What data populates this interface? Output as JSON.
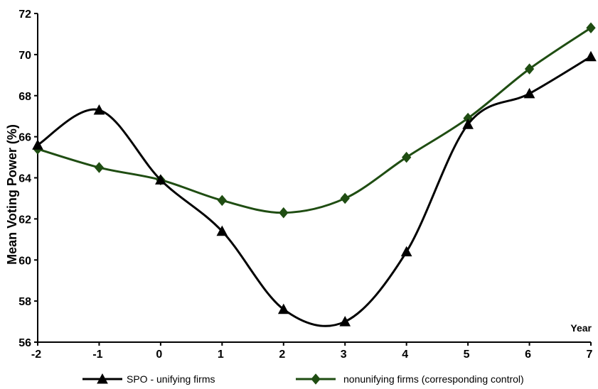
{
  "chart_data": {
    "type": "line",
    "title": "",
    "xlabel": "Year",
    "ylabel": "Mean Voting Power (%)",
    "x": [
      -2,
      -1,
      0,
      1,
      2,
      3,
      4,
      5,
      6,
      7
    ],
    "xlim": [
      -2,
      7
    ],
    "ylim": [
      56,
      72
    ],
    "xticks": [
      "-2",
      "-1",
      "0",
      "1",
      "2",
      "3",
      "4",
      "5",
      "6",
      "7"
    ],
    "yticks": [
      "56",
      "58",
      "60",
      "62",
      "64",
      "66",
      "68",
      "70",
      "72"
    ],
    "grid": false,
    "legend_position": "bottom",
    "smoothed": true,
    "series": [
      {
        "name": "SPO - unifying firms",
        "marker": "triangle",
        "color": "#000000",
        "values": [
          65.6,
          67.3,
          63.9,
          61.4,
          57.6,
          57.0,
          60.4,
          66.6,
          68.1,
          69.9
        ]
      },
      {
        "name": "nonunifying firms (corresponding control)",
        "marker": "diamond",
        "color": "#1f4d12",
        "values": [
          65.4,
          64.5,
          63.9,
          62.9,
          62.3,
          63.0,
          65.0,
          66.9,
          69.3,
          71.3
        ]
      }
    ]
  }
}
